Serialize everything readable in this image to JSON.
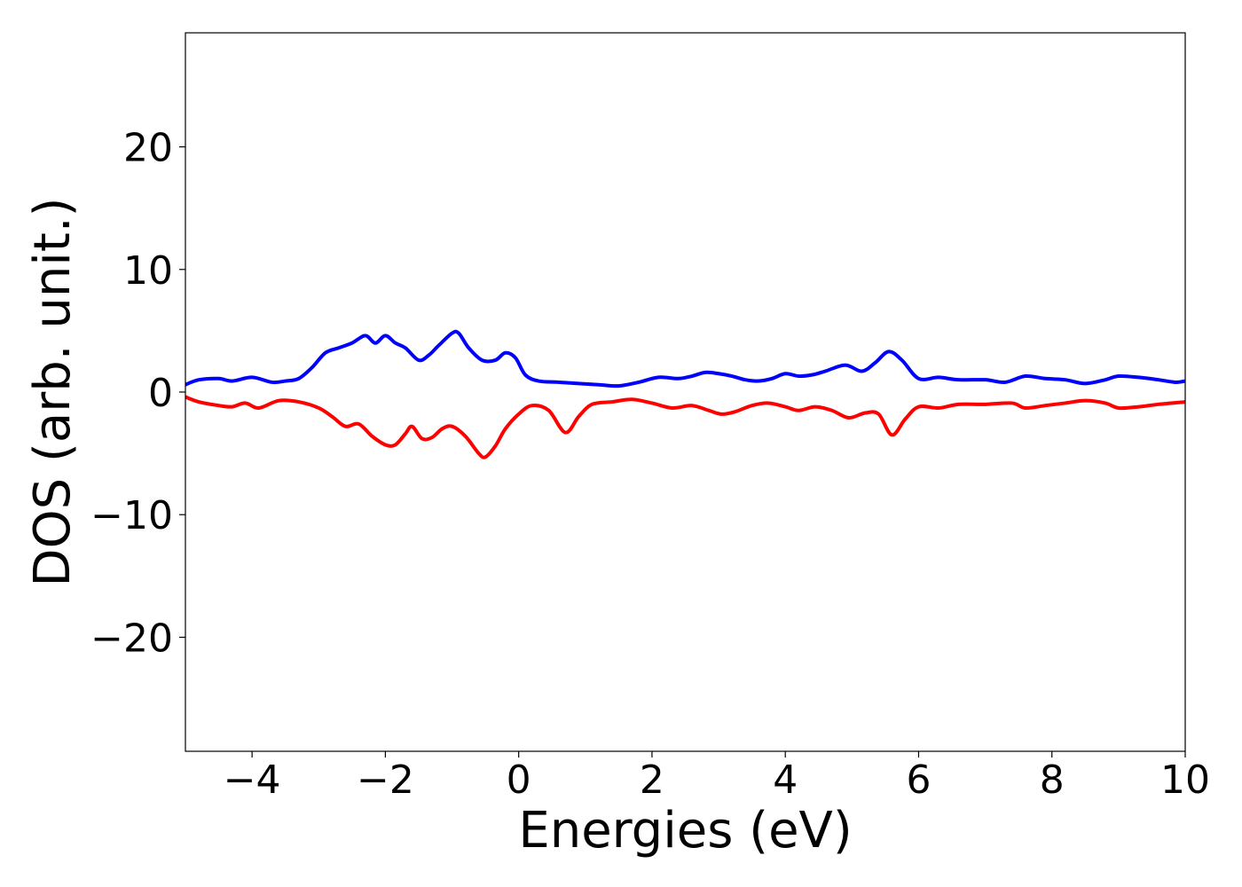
{
  "chart_data": {
    "type": "line",
    "title": "",
    "xlabel": "Energies (eV)",
    "ylabel": "DOS (arb. unit.)",
    "xlim": [
      -5,
      10
    ],
    "ylim": [
      -29.3,
      29.3
    ],
    "grid": false,
    "legend": "none",
    "x_ticks": [
      -4,
      -2,
      0,
      2,
      4,
      6,
      8,
      10
    ],
    "x_tick_labels": [
      "−4",
      "−2",
      "0",
      "2",
      "4",
      "6",
      "8",
      "10"
    ],
    "y_ticks": [
      20,
      10,
      0,
      -10,
      -20
    ],
    "y_tick_labels": [
      "20",
      "10",
      "0",
      "−10",
      "−20"
    ],
    "series": [
      {
        "color": "#0000ff",
        "x": [
          -5.0,
          -4.8,
          -4.5,
          -4.3,
          -4.0,
          -3.7,
          -3.5,
          -3.3,
          -3.1,
          -2.9,
          -2.7,
          -2.5,
          -2.3,
          -2.15,
          -2.0,
          -1.85,
          -1.7,
          -1.5,
          -1.35,
          -1.2,
          -1.0,
          -0.9,
          -0.75,
          -0.55,
          -0.35,
          -0.2,
          -0.05,
          0.1,
          0.3,
          0.6,
          0.9,
          1.2,
          1.5,
          1.8,
          2.1,
          2.4,
          2.6,
          2.8,
          3.0,
          3.2,
          3.4,
          3.6,
          3.8,
          4.0,
          4.2,
          4.4,
          4.6,
          4.9,
          5.15,
          5.35,
          5.55,
          5.75,
          6.0,
          6.3,
          6.6,
          7.0,
          7.3,
          7.6,
          7.9,
          8.2,
          8.5,
          8.8,
          9.0,
          9.3,
          9.6,
          9.85,
          10.0
        ],
        "y": [
          0.6,
          1.0,
          1.1,
          0.9,
          1.2,
          0.8,
          0.9,
          1.1,
          2.0,
          3.2,
          3.6,
          4.0,
          4.6,
          4.0,
          4.6,
          4.0,
          3.6,
          2.6,
          3.0,
          3.8,
          4.8,
          4.8,
          3.6,
          2.6,
          2.6,
          3.2,
          2.8,
          1.4,
          0.9,
          0.8,
          0.7,
          0.6,
          0.5,
          0.8,
          1.2,
          1.1,
          1.3,
          1.6,
          1.5,
          1.3,
          1.0,
          0.9,
          1.1,
          1.5,
          1.3,
          1.4,
          1.7,
          2.2,
          1.7,
          2.4,
          3.3,
          2.6,
          1.1,
          1.2,
          1.0,
          1.0,
          0.8,
          1.3,
          1.1,
          1.0,
          0.7,
          1.0,
          1.3,
          1.2,
          1.0,
          0.8,
          0.9
        ]
      },
      {
        "color": "#ff0000",
        "x": [
          -5.0,
          -4.8,
          -4.5,
          -4.3,
          -4.1,
          -3.9,
          -3.6,
          -3.3,
          -3.0,
          -2.8,
          -2.6,
          -2.4,
          -2.2,
          -2.0,
          -1.85,
          -1.7,
          -1.6,
          -1.45,
          -1.3,
          -1.15,
          -1.0,
          -0.8,
          -0.6,
          -0.5,
          -0.35,
          -0.2,
          0.0,
          0.2,
          0.45,
          0.7,
          0.9,
          1.1,
          1.4,
          1.7,
          2.0,
          2.3,
          2.6,
          2.85,
          3.05,
          3.25,
          3.5,
          3.75,
          4.0,
          4.2,
          4.45,
          4.7,
          4.95,
          5.2,
          5.4,
          5.6,
          5.8,
          6.0,
          6.3,
          6.6,
          7.0,
          7.4,
          7.6,
          7.9,
          8.2,
          8.5,
          8.8,
          9.0,
          9.3,
          9.6,
          10.0
        ],
        "y": [
          -0.4,
          -0.8,
          -1.1,
          -1.2,
          -0.9,
          -1.3,
          -0.7,
          -0.8,
          -1.3,
          -2.0,
          -2.8,
          -2.6,
          -3.6,
          -4.3,
          -4.3,
          -3.4,
          -2.8,
          -3.8,
          -3.7,
          -3.0,
          -2.8,
          -3.6,
          -5.0,
          -5.3,
          -4.4,
          -3.0,
          -1.8,
          -1.1,
          -1.5,
          -3.3,
          -2.0,
          -1.0,
          -0.8,
          -0.6,
          -0.9,
          -1.3,
          -1.1,
          -1.5,
          -1.8,
          -1.6,
          -1.1,
          -0.9,
          -1.2,
          -1.5,
          -1.2,
          -1.5,
          -2.1,
          -1.7,
          -1.8,
          -3.5,
          -2.2,
          -1.2,
          -1.3,
          -1.0,
          -1.0,
          -0.9,
          -1.3,
          -1.1,
          -0.9,
          -0.7,
          -0.9,
          -1.3,
          -1.2,
          -1.0,
          -0.8
        ]
      }
    ]
  }
}
